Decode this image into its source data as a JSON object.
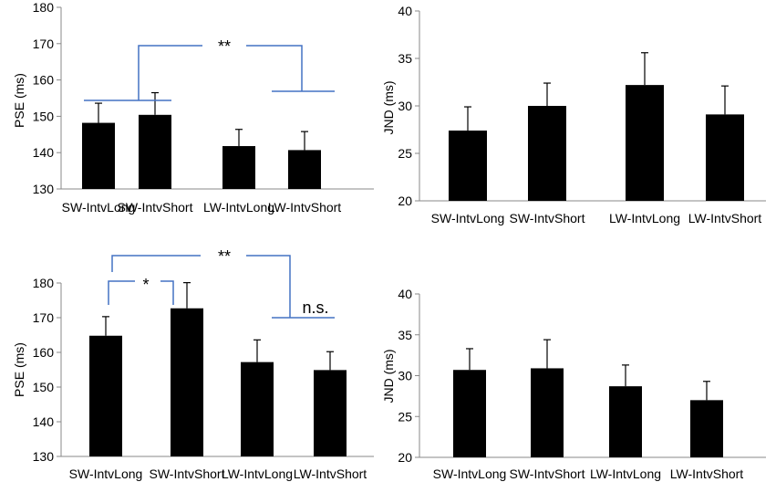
{
  "chart_data": [
    {
      "type": "bar",
      "panel": "top-left",
      "categories": [
        "SW-IntvLong",
        "SW-IntvShort",
        "LW-IntvLong",
        "LW-IntvShort"
      ],
      "values": [
        148.2,
        150.4,
        141.8,
        140.7
      ],
      "errors": [
        5.4,
        6.1,
        4.6,
        5.1
      ],
      "ylabel": "PSE (ms)",
      "ylim": [
        130,
        180
      ],
      "yticks": [
        "130",
        "140",
        "150",
        "160",
        "170",
        "180"
      ],
      "bar_color": "#000000",
      "annotations": [
        {
          "type": "bracket",
          "label": "**",
          "between": [
            "SW pair",
            "LW pair"
          ]
        }
      ]
    },
    {
      "type": "bar",
      "panel": "top-right",
      "categories": [
        "SW-IntvLong",
        "SW-IntvShort",
        "LW-IntvLong",
        "LW-IntvShort"
      ],
      "values": [
        27.4,
        30.0,
        32.2,
        29.1
      ],
      "errors": [
        2.5,
        2.4,
        3.4,
        3.0
      ],
      "ylabel": "JND (ms)",
      "ylim": [
        20,
        40
      ],
      "yticks": [
        "20",
        "25",
        "30",
        "35",
        "40"
      ],
      "bar_color": "#000000"
    },
    {
      "type": "bar",
      "panel": "bottom-left",
      "categories": [
        "SW-IntvLong",
        "SW-IntvShort",
        "LW-IntvLong",
        "LW-IntvShort"
      ],
      "values": [
        164.8,
        172.7,
        157.2,
        154.9
      ],
      "errors": [
        5.5,
        7.4,
        6.4,
        5.3
      ],
      "ylabel": "PSE (ms)",
      "ylim": [
        130,
        180
      ],
      "yticks": [
        "130",
        "140",
        "150",
        "160",
        "170",
        "180"
      ],
      "bar_color": "#000000",
      "annotations": [
        {
          "type": "bracket",
          "label": "**",
          "between": [
            "SW-IntvLong",
            "LW pair"
          ]
        },
        {
          "type": "bracket",
          "label": "*",
          "between": [
            "SW-IntvLong",
            "SW-IntvShort"
          ]
        },
        {
          "type": "bracket",
          "label": "n.s.",
          "between": [
            "LW-IntvLong",
            "LW-IntvShort"
          ]
        }
      ]
    },
    {
      "type": "bar",
      "panel": "bottom-right",
      "categories": [
        "SW-IntvLong",
        "SW-IntvShort",
        "LW-IntvLong",
        "LW-IntvShort"
      ],
      "values": [
        30.7,
        30.9,
        28.7,
        27.0
      ],
      "errors": [
        2.6,
        3.5,
        2.6,
        2.3
      ],
      "ylabel": "JND (ms)",
      "ylim": [
        20,
        40
      ],
      "yticks": [
        "20",
        "25",
        "30",
        "35",
        "40"
      ],
      "bar_color": "#000000"
    }
  ],
  "bracket_color": "#4472C4",
  "significance": {
    "top_left_pairs": "**",
    "bottom_left_long": "**",
    "bottom_left_short": "*",
    "bottom_left_ns": "n.s."
  }
}
